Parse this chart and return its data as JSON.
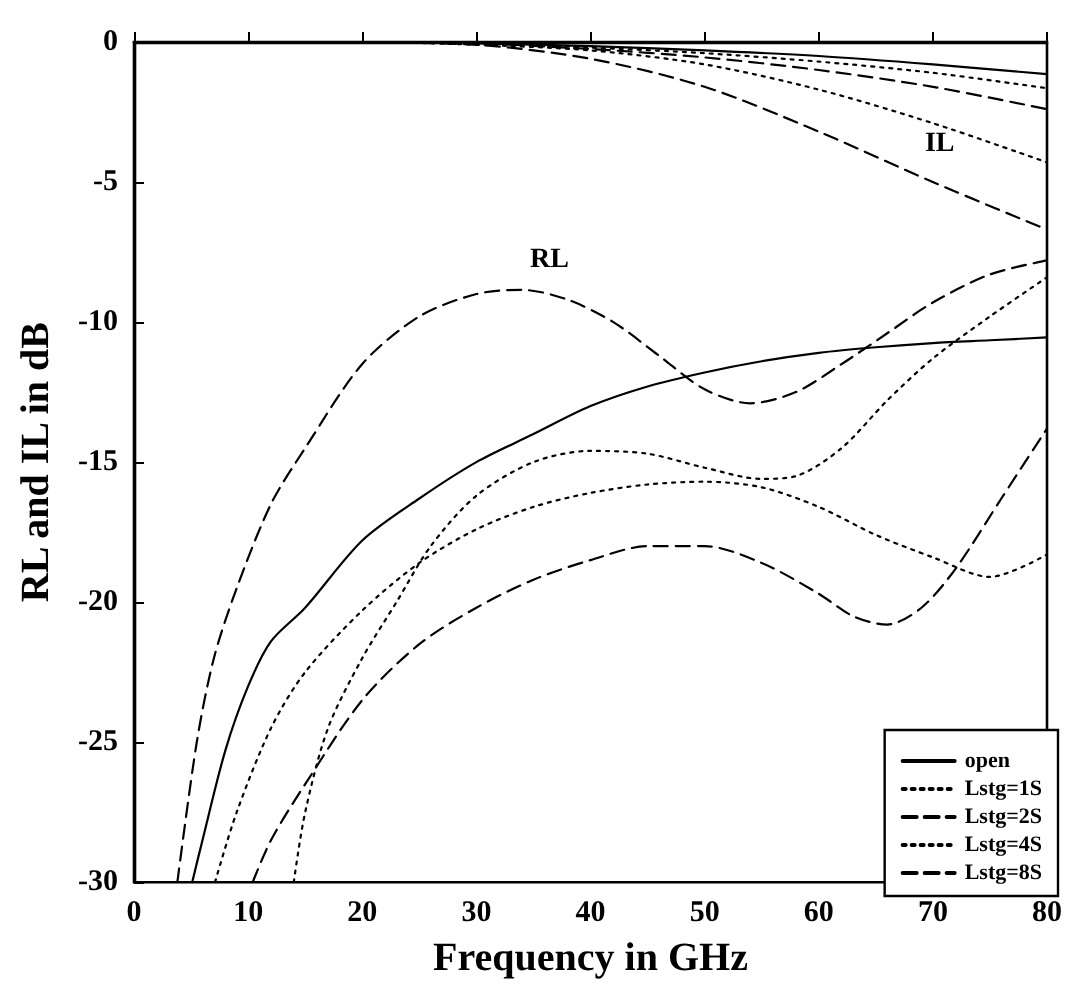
{
  "chart_data": {
    "type": "line",
    "xlabel": "Frequency in GHz",
    "ylabel": "RL and IL in dB",
    "xlim": [
      0,
      80
    ],
    "xticks": [
      0,
      10,
      20,
      30,
      40,
      50,
      60,
      70,
      80
    ],
    "ylim": [
      -30,
      0
    ],
    "yticks": [
      -30,
      -25,
      -20,
      -15,
      -10,
      -5,
      0
    ],
    "grid": false,
    "legend": "bottom right",
    "marker": "none",
    "annotations": [
      {
        "text": "RL",
        "x": 34,
        "y": -8.85
      },
      {
        "text": "IL",
        "x": 70,
        "y": -5
      }
    ],
    "series": [
      {
        "name": "open",
        "color": "#000000",
        "line_style": "solid",
        "x": [
          5.1,
          6,
          8,
          10,
          12,
          15,
          20,
          25,
          30,
          35,
          40,
          45,
          50,
          55,
          60,
          65,
          70,
          75,
          80
        ],
        "values": [
          -30,
          -28.5,
          -25.3,
          -23,
          -21.4,
          -20.2,
          -17.8,
          -16.3,
          -15,
          -14,
          -13,
          -12.3,
          -11.8,
          -11.4,
          -11.1,
          -10.9,
          -10.75,
          -10.65,
          -10.55
        ]
      },
      {
        "name": "Lstg=1S",
        "color": "#000000",
        "line_style": "dotted",
        "x": [
          7.1,
          9,
          12,
          15,
          20,
          25,
          30,
          35,
          40,
          45,
          50,
          55,
          60,
          65,
          70,
          75,
          80
        ],
        "values": [
          -30,
          -27.5,
          -24.5,
          -22.5,
          -20.3,
          -18.6,
          -17.4,
          -16.6,
          -16.1,
          -15.8,
          -15.7,
          -15.9,
          -16.6,
          -17.6,
          -18.4,
          -19.1,
          -18.3
        ]
      },
      {
        "name": "Lstg=2S",
        "color": "#000000",
        "line_style": "dashed",
        "x": [
          10.4,
          12,
          15,
          20,
          25,
          30,
          35,
          40,
          45,
          50,
          55,
          60,
          63,
          66,
          69,
          72,
          76,
          80
        ],
        "values": [
          -30,
          -28.5,
          -26.5,
          -23.5,
          -21.5,
          -20.2,
          -19.2,
          -18.5,
          -18,
          -18,
          -18.6,
          -19.7,
          -20.5,
          -20.8,
          -20.2,
          -18.8,
          -16.3,
          -13.8
        ]
      },
      {
        "name": "Lstg=4S",
        "color": "#000000",
        "line_style": "dotted",
        "x": [
          14,
          15,
          17,
          20,
          23,
          26,
          30,
          35,
          40,
          45,
          50,
          55,
          58,
          62,
          66,
          70,
          75,
          80
        ],
        "values": [
          -30,
          -27.5,
          -24.5,
          -22,
          -20,
          -18,
          -16.2,
          -15,
          -14.6,
          -14.7,
          -15.2,
          -15.6,
          -15.5,
          -14.5,
          -12.8,
          -11.3,
          -9.8,
          -8.4
        ]
      },
      {
        "name": "Lstg=8S",
        "color": "#000000",
        "line_style": "dashed",
        "x": [
          3.8,
          5.5,
          7,
          9,
          12,
          15,
          20,
          25,
          30,
          34,
          38,
          42,
          46,
          50,
          54,
          58,
          62,
          66,
          70,
          75,
          80
        ],
        "values": [
          -30,
          -25,
          -22,
          -19.5,
          -16.5,
          -14.5,
          -11.5,
          -9.8,
          -9,
          -8.85,
          -9.2,
          -10,
          -11.2,
          -12.4,
          -12.9,
          -12.5,
          -11.5,
          -10.4,
          -9.3,
          -8.3,
          -7.8
        ]
      },
      {
        "color": "#000000",
        "line_style": "solid",
        "x": [
          0,
          20,
          30,
          40,
          50,
          60,
          70,
          80
        ],
        "values": [
          0,
          0,
          -0.05,
          -0.15,
          -0.3,
          -0.5,
          -0.8,
          -1.15
        ]
      },
      {
        "color": "#000000",
        "line_style": "dotted",
        "x": [
          0,
          20,
          30,
          40,
          50,
          60,
          70,
          80
        ],
        "values": [
          0,
          0,
          -0.05,
          -0.2,
          -0.4,
          -0.7,
          -1.1,
          -1.65
        ]
      },
      {
        "color": "#000000",
        "line_style": "dashed",
        "x": [
          0,
          20,
          30,
          40,
          50,
          60,
          70,
          80
        ],
        "values": [
          0,
          0,
          -0.05,
          -0.25,
          -0.55,
          -1,
          -1.6,
          -2.4
        ]
      },
      {
        "color": "#000000",
        "line_style": "dotted",
        "x": [
          0,
          20,
          30,
          40,
          50,
          60,
          70,
          80
        ],
        "values": [
          0,
          0,
          -0.1,
          -0.3,
          -0.8,
          -1.7,
          -2.9,
          -4.3
        ]
      },
      {
        "color": "#000000",
        "line_style": "dashed",
        "x": [
          0,
          20,
          30,
          40,
          50,
          60,
          70,
          80
        ],
        "values": [
          0,
          -0.02,
          -0.1,
          -0.6,
          -1.6,
          -3.2,
          -5,
          -6.7
        ]
      }
    ]
  }
}
